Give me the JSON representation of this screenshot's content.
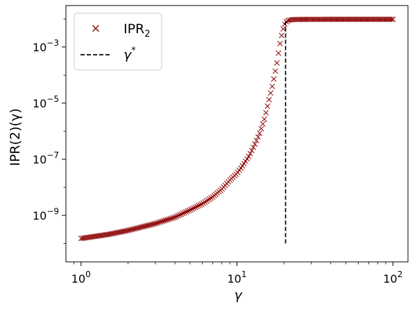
{
  "chart_data": {
    "type": "scatter",
    "xlabel": "γ",
    "ylabel": "IPR(2)(γ)",
    "x_scale": "log",
    "y_scale": "log",
    "xlim": [
      0.8,
      125
    ],
    "ylim": [
      2.2e-11,
      0.03
    ],
    "x_ticks": [
      1,
      10,
      100
    ],
    "x_tick_labels": [
      {
        "base": "10",
        "exp": "0"
      },
      {
        "base": "10",
        "exp": "1"
      },
      {
        "base": "10",
        "exp": "2"
      }
    ],
    "y_ticks": [
      1e-09,
      1e-07,
      1e-05,
      0.001
    ],
    "y_tick_labels": [
      {
        "base": "10",
        "exp": "−9"
      },
      {
        "base": "10",
        "exp": "−7"
      },
      {
        "base": "10",
        "exp": "−5"
      },
      {
        "base": "10",
        "exp": "−3"
      }
    ],
    "grid": false,
    "legend_position": "upper-left",
    "series": [
      {
        "name": "IPR2",
        "label_base": "IPR",
        "label_sub": "2",
        "marker": "x",
        "color": "#8b0000",
        "x": [
          1.0,
          1.2,
          1.5,
          2.0,
          3.0,
          4.0,
          5.0,
          6.0,
          7.0,
          8.0,
          9.0,
          10.0,
          11.0,
          12.0,
          13.0,
          14.0,
          15.0,
          16.0,
          17.0,
          18.0,
          19.0,
          19.5,
          20.0,
          20.5,
          21.0,
          22.0,
          23.0,
          25.0,
          30.0,
          40.0,
          50.0,
          70.0,
          100.0
        ],
        "y": [
          1.5e-10,
          1.75e-10,
          2.1e-10,
          2.9e-10,
          5.1e-10,
          8.6e-10,
          1.55e-09,
          2.6e-09,
          4.6e-09,
          8.6e-09,
          1.8e-08,
          3.1e-08,
          6.5e-08,
          1.35e-07,
          3.3e-07,
          8.5e-07,
          2.7e-06,
          1.2e-05,
          5e-05,
          0.00025,
          0.0016,
          0.0032,
          0.0055,
          0.0075,
          0.0085,
          0.0093,
          0.0095,
          0.0096,
          0.00965,
          0.0097,
          0.0097,
          0.0097,
          0.0097
        ]
      },
      {
        "name": "γ*",
        "label_base": "γ",
        "label_sup": "*",
        "style": "dashed",
        "color": "#000000",
        "x": [
          20.5,
          20.5
        ],
        "y": [
          1e-10,
          0.009
        ]
      }
    ]
  }
}
